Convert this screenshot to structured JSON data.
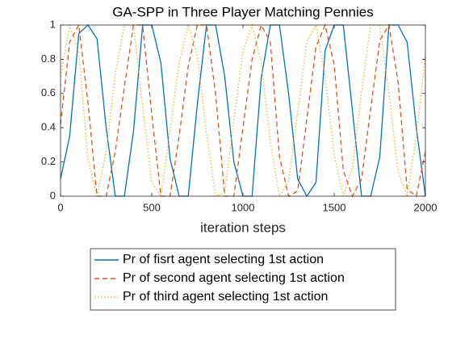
{
  "chart_data": {
    "type": "line",
    "title": "GA-SPP in Three Player Matching Pennies",
    "x_label": "iteration steps",
    "x": [
      0,
      50,
      100,
      150,
      200,
      250,
      300,
      350,
      400,
      450,
      500,
      550,
      600,
      650,
      700,
      750,
      800,
      850,
      900,
      950,
      1000,
      1050,
      1100,
      1150,
      1200,
      1250,
      1300,
      1350,
      1400,
      1450,
      1500,
      1550,
      1600,
      1650,
      1700,
      1750,
      1800,
      1850,
      1900,
      1950,
      2000
    ],
    "series": [
      {
        "name": "Pr of fisrt agent selecting 1st action",
        "color": "#0072BD",
        "dash": "solid",
        "values": [
          0.1,
          0.35,
          0.95,
          1,
          0.92,
          0.4,
          0,
          0,
          0.38,
          1,
          1,
          0.78,
          0.22,
          0,
          0,
          0.54,
          1,
          1,
          0.7,
          0.2,
          0,
          0,
          0.69,
          1,
          1,
          0.6,
          0.1,
          0,
          0.08,
          0.85,
          1,
          1,
          0.5,
          0,
          0,
          0.23,
          1,
          1,
          0.9,
          0.4,
          0
        ]
      },
      {
        "name": "Pr of second agent selecting 1st action",
        "color": "#D95319",
        "dash": "dashed",
        "values": [
          0.42,
          0.9,
          1,
          0.55,
          0,
          0,
          0.26,
          0.64,
          1,
          1,
          0.48,
          0,
          0,
          0.35,
          0.76,
          1,
          1,
          0.6,
          0,
          0,
          0.4,
          0.8,
          1,
          0.9,
          0.23,
          0,
          0.03,
          0.45,
          0.87,
          1,
          0.77,
          0.15,
          0,
          0.1,
          0.51,
          0.91,
          1,
          0.67,
          0.04,
          0,
          0.26
        ]
      },
      {
        "name": "Pr of third agent selecting 1st action",
        "color": "#EDB120",
        "dash": "dotted",
        "values": [
          0.7,
          1,
          0.84,
          0.22,
          0,
          0.26,
          0.71,
          1,
          1,
          0.53,
          0.08,
          0,
          0.38,
          0.78,
          1,
          0.82,
          0.37,
          0,
          0.02,
          0.44,
          0.85,
          1,
          0.78,
          0.32,
          0,
          0.09,
          0.49,
          0.9,
          1,
          0.7,
          0.24,
          0,
          0.17,
          0.61,
          1,
          1,
          0.6,
          0.15,
          0,
          0.35,
          0.82
        ]
      }
    ],
    "xlim": [
      0,
      2000
    ],
    "xticks": [
      0,
      500,
      1000,
      1500,
      2000
    ],
    "ylim": [
      0,
      1
    ],
    "yticks": [
      0,
      0.2,
      0.4,
      0.6,
      0.8,
      1
    ],
    "grid": false,
    "legend": "below"
  }
}
